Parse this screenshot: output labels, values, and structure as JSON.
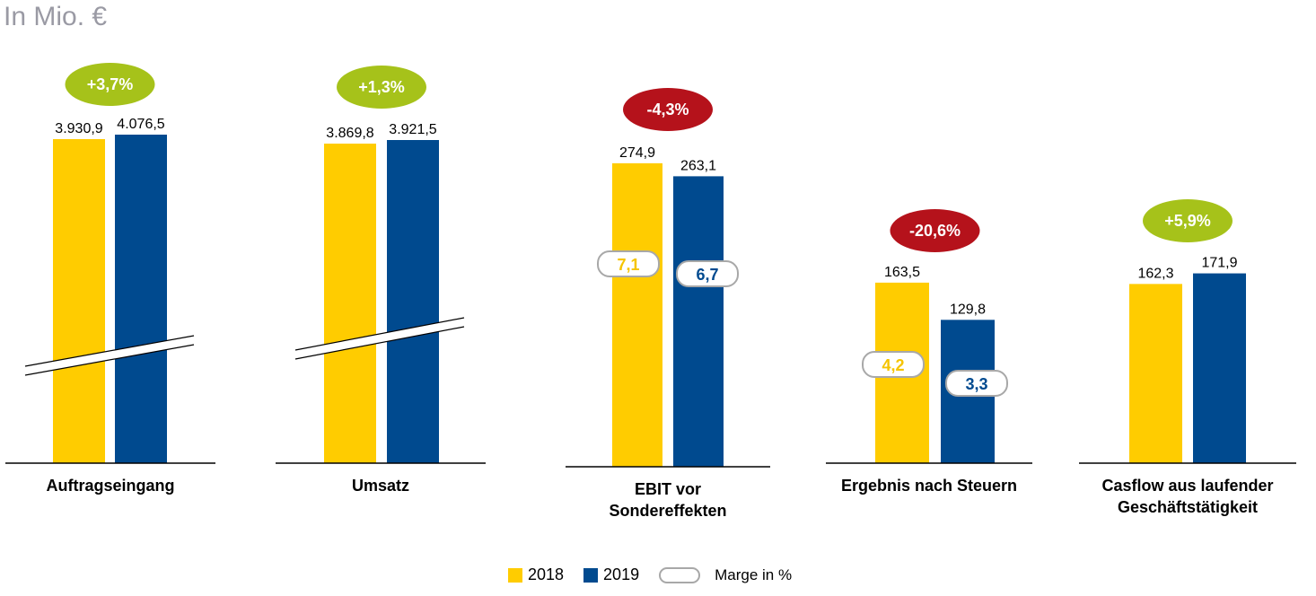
{
  "unit_label": "In Mio. €",
  "colors": {
    "y2018": "#ffcc00",
    "y2019": "#004a8f",
    "positive": "#a6c21a",
    "negative": "#b5121b",
    "marge_border": "#a8a8a8"
  },
  "chart_data": {
    "type": "bar",
    "unit": "In Mio. €",
    "series": [
      {
        "name": "2018",
        "values": [
          3930.9,
          3869.8,
          274.9,
          163.5,
          162.3
        ]
      },
      {
        "name": "2019",
        "values": [
          4076.5,
          3921.5,
          263.1,
          129.8,
          171.9
        ]
      }
    ],
    "groups": [
      {
        "category": "Auftragseingang",
        "category_lines": [
          "Auftragseingang"
        ],
        "values": [
          3930.9,
          4076.5
        ],
        "value_labels": [
          "3.930,9",
          "4.076,5"
        ],
        "change": "+3,7%",
        "change_sign": "positive",
        "axis_break": true,
        "margins": null
      },
      {
        "category": "Umsatz",
        "category_lines": [
          "Umsatz"
        ],
        "values": [
          3869.8,
          3921.5
        ],
        "value_labels": [
          "3.869,8",
          "3.921,5"
        ],
        "change": "+1,3%",
        "change_sign": "positive",
        "axis_break": true,
        "margins": null
      },
      {
        "category": "EBIT vor Sondereffekten",
        "category_lines": [
          "EBIT vor",
          "Sondereffekten"
        ],
        "values": [
          274.9,
          263.1
        ],
        "value_labels": [
          "274,9",
          "263,1"
        ],
        "change": "-4,3%",
        "change_sign": "negative",
        "axis_break": false,
        "margins": [
          "7,1",
          "6,7"
        ]
      },
      {
        "category": "Ergebnis nach Steuern",
        "category_lines": [
          "Ergebnis nach Steuern"
        ],
        "values": [
          163.5,
          129.8
        ],
        "value_labels": [
          "163,5",
          "129,8"
        ],
        "change": "-20,6%",
        "change_sign": "negative",
        "axis_break": false,
        "margins": [
          "4,2",
          "3,3"
        ]
      },
      {
        "category": "Casflow aus laufender Geschäftstätigkeit",
        "category_lines": [
          "Casflow aus laufender",
          "Geschäftstätigkeit"
        ],
        "values": [
          162.3,
          171.9
        ],
        "value_labels": [
          "162,3",
          "171,9"
        ],
        "change": "+5,9%",
        "change_sign": "positive",
        "axis_break": false,
        "margins": null
      }
    ],
    "legend": {
      "entries": [
        "2018",
        "2019"
      ],
      "marge_label": "Marge in %",
      "placement": "bottom-center"
    }
  }
}
